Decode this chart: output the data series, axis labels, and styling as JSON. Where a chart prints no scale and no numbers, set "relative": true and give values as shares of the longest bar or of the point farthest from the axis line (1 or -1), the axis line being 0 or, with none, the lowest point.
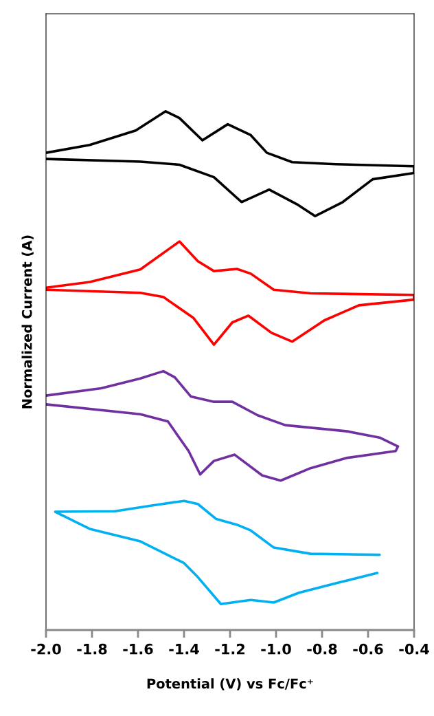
{
  "chart_data": {
    "type": "line",
    "xlabel": "Potential (V) vs Fc/Fc⁺",
    "ylabel": "Normalized Current (A)",
    "relative": true,
    "tick_labels": "x",
    "xlim": [
      -2.0,
      -0.4
    ],
    "xticks": [
      {
        "value": -2.0,
        "label": "-2.0"
      },
      -1.8,
      -1.6,
      -1.4,
      -1.2,
      {
        "value": -1.0,
        "label": "-1.0"
      },
      -0.8,
      -0.6,
      -0.4
    ],
    "grid": false,
    "marker": "none",
    "line_style": "solid",
    "series": [
      {
        "color": "#000000",
        "x": [
          -2.0,
          -1.81,
          -1.61,
          -1.48,
          -1.42,
          -1.32,
          -1.21,
          -1.11,
          -1.04,
          -0.93,
          -0.74,
          -0.4,
          -0.4,
          -0.58,
          -0.71,
          -0.83,
          -0.91,
          -1.03,
          -1.15,
          -1.27,
          -1.42,
          -1.59,
          -2.0
        ],
        "values": [
          0.92,
          0.935,
          0.963,
          1.0,
          0.987,
          0.944,
          0.975,
          0.954,
          0.92,
          0.902,
          0.898,
          0.894,
          0.881,
          0.869,
          0.825,
          0.798,
          0.821,
          0.849,
          0.825,
          0.873,
          0.897,
          0.903,
          0.908
        ]
      },
      {
        "color": "#ff0000",
        "x": [
          -2.0,
          -1.81,
          -1.59,
          -1.42,
          -1.34,
          -1.27,
          -1.17,
          -1.11,
          -1.01,
          -0.85,
          -0.4,
          -0.4,
          -0.64,
          -0.79,
          -0.93,
          -1.02,
          -1.12,
          -1.19,
          -1.27,
          -1.36,
          -1.49,
          -1.59,
          -2.0
        ],
        "values": [
          0.66,
          0.671,
          0.695,
          0.749,
          0.711,
          0.692,
          0.696,
          0.687,
          0.656,
          0.649,
          0.646,
          0.637,
          0.626,
          0.597,
          0.556,
          0.573,
          0.606,
          0.593,
          0.55,
          0.602,
          0.642,
          0.65,
          0.656
        ]
      },
      {
        "color": "#7030a0",
        "x": [
          -2.0,
          -1.76,
          -1.59,
          -1.49,
          -1.44,
          -1.37,
          -1.27,
          -1.19,
          -1.08,
          -0.96,
          -0.69,
          -0.55,
          -0.47,
          -0.48,
          -0.69,
          -0.85,
          -0.98,
          -1.06,
          -1.18,
          -1.27,
          -1.33,
          -1.38,
          -1.47,
          -1.59,
          -2.0
        ],
        "values": [
          0.452,
          0.466,
          0.485,
          0.499,
          0.487,
          0.45,
          0.44,
          0.44,
          0.414,
          0.395,
          0.383,
          0.371,
          0.354,
          0.345,
          0.332,
          0.312,
          0.288,
          0.298,
          0.338,
          0.326,
          0.3,
          0.345,
          0.402,
          0.416,
          0.435
        ]
      },
      {
        "color": "#00b0f0",
        "x": [
          -0.55,
          -0.85,
          -1.01,
          -1.11,
          -1.17,
          -1.26,
          -1.34,
          -1.4,
          -1.54,
          -1.7,
          -1.96,
          -1.81,
          -1.59,
          -1.4,
          -1.34,
          -1.24,
          -1.11,
          -1.01,
          -0.9,
          -0.74,
          -0.56
        ],
        "values": [
          0.145,
          0.147,
          0.159,
          0.192,
          0.203,
          0.214,
          0.243,
          0.249,
          0.24,
          0.229,
          0.228,
          0.195,
          0.171,
          0.129,
          0.102,
          0.05,
          0.058,
          0.053,
          0.072,
          0.09,
          0.11
        ]
      }
    ]
  }
}
